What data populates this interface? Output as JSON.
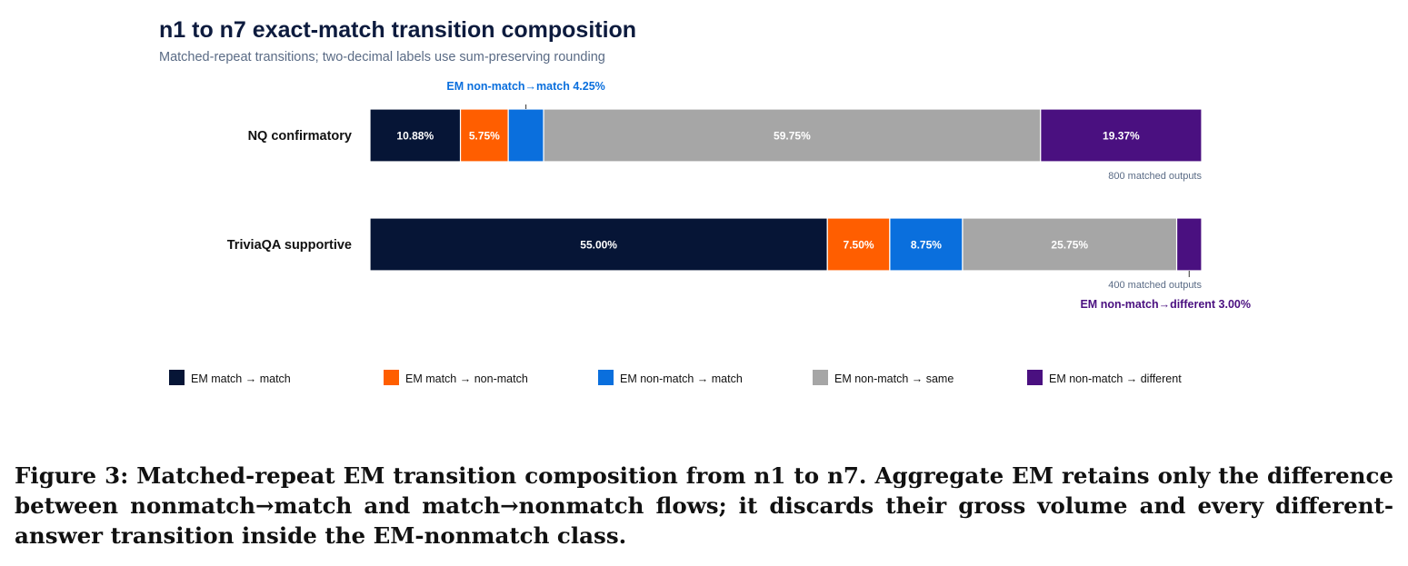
{
  "chart_data": {
    "type": "bar",
    "orientation": "horizontal",
    "stacked": true,
    "title": "n1 to n7 exact-match transition composition",
    "subtitle": "Matched-repeat transitions; two-decimal labels use sum-preserving rounding",
    "categories": [
      "NQ confirmatory",
      "TriviaQA supportive"
    ],
    "series": [
      {
        "name": "EM match → match",
        "color": "#061536",
        "values": [
          10.88,
          55.0
        ],
        "labels": [
          "10.88%",
          "55.00%"
        ]
      },
      {
        "name": "EM match → non-match",
        "color": "#ff5e00",
        "values": [
          5.75,
          7.5
        ],
        "labels": [
          "5.75%",
          "7.50%"
        ]
      },
      {
        "name": "EM non-match → match",
        "color": "#0a6fdd",
        "values": [
          4.25,
          8.75
        ],
        "labels": [
          "",
          "8.75%"
        ]
      },
      {
        "name": "EM non-match → same",
        "color": "#a6a6a6",
        "values": [
          59.75,
          25.75
        ],
        "labels": [
          "59.75%",
          "25.75%"
        ]
      },
      {
        "name": "EM non-match → different",
        "color": "#4a1080",
        "values": [
          19.37,
          3.0
        ],
        "labels": [
          "19.37%",
          ""
        ]
      }
    ],
    "totals": [
      "800 matched outputs",
      "400 matched outputs"
    ],
    "annotations": [
      {
        "text": "EM non-match→match 4.25%",
        "category": 0,
        "series": 2,
        "side": "above",
        "color": "#0a6fdd"
      },
      {
        "text": "EM non-match→different 3.00%",
        "category": 1,
        "series": 4,
        "side": "below",
        "color": "#4a1080"
      }
    ],
    "xlim": [
      0,
      100
    ],
    "grid": false,
    "legend_position": "bottom"
  },
  "caption": "Figure 3: Matched-repeat EM transition composition from n1 to n7. Aggregate EM retains only the difference between nonmatch→match and match→nonmatch flows; it discards their gross volume and every different-answer transition inside the EM-nonmatch class."
}
